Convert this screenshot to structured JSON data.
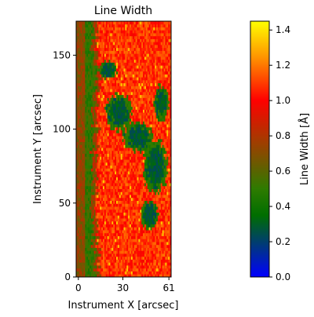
{
  "chart_data": {
    "type": "heatmap",
    "title": "Line Width",
    "xlabel": "Instrument X [arcsec]",
    "ylabel": "Instrument Y [arcsec]",
    "xlim": [
      -1.5,
      62.5
    ],
    "ylim": [
      0,
      173
    ],
    "x_ticks": [
      0,
      30,
      61
    ],
    "y_ticks": [
      0,
      50,
      100,
      150
    ],
    "grid": false,
    "colorbar": {
      "label": "Line Width [Å]",
      "range": [
        0.0,
        1.45
      ],
      "ticks": [
        "0.0",
        "0.2",
        "0.4",
        "0.6",
        "0.8",
        "1.0",
        "1.2",
        "1.4"
      ],
      "colormap": [
        {
          "v": 0.0,
          "color": "#0000ff"
        },
        {
          "v": 0.35,
          "color": "#006e00"
        },
        {
          "v": 0.5,
          "color": "#2e7b00"
        },
        {
          "v": 0.75,
          "color": "#9a4100"
        },
        {
          "v": 1.0,
          "color": "#ff0000"
        },
        {
          "v": 1.25,
          "color": "#ff9600"
        },
        {
          "v": 1.45,
          "color": "#ffff00"
        }
      ]
    },
    "grid_shape": {
      "cols": 64,
      "rows": 87
    },
    "pattern": {
      "left_edge_x": [
        0,
        5
      ],
      "left_edge_value": 0.72,
      "green_boundary_by_y": [
        {
          "y": 0,
          "x": 12
        },
        {
          "y": 25,
          "x": 10
        },
        {
          "y": 60,
          "x": 9
        },
        {
          "y": 100,
          "x": 10
        },
        {
          "y": 140,
          "x": 12
        },
        {
          "y": 155,
          "x": 8
        },
        {
          "y": 165,
          "x": 11
        },
        {
          "y": 173,
          "x": 10
        }
      ],
      "blue_regions": [
        {
          "cx": 27,
          "cy": 112,
          "rx": 9,
          "ry": 12
        },
        {
          "cx": 40,
          "cy": 95,
          "rx": 10,
          "ry": 10
        },
        {
          "cx": 52,
          "cy": 75,
          "rx": 8,
          "ry": 18
        },
        {
          "cx": 48,
          "cy": 42,
          "rx": 6,
          "ry": 10
        },
        {
          "cx": 56,
          "cy": 118,
          "rx": 5,
          "ry": 12
        },
        {
          "cx": 20,
          "cy": 140,
          "rx": 6,
          "ry": 6
        }
      ],
      "background_value": 1.08
    }
  }
}
